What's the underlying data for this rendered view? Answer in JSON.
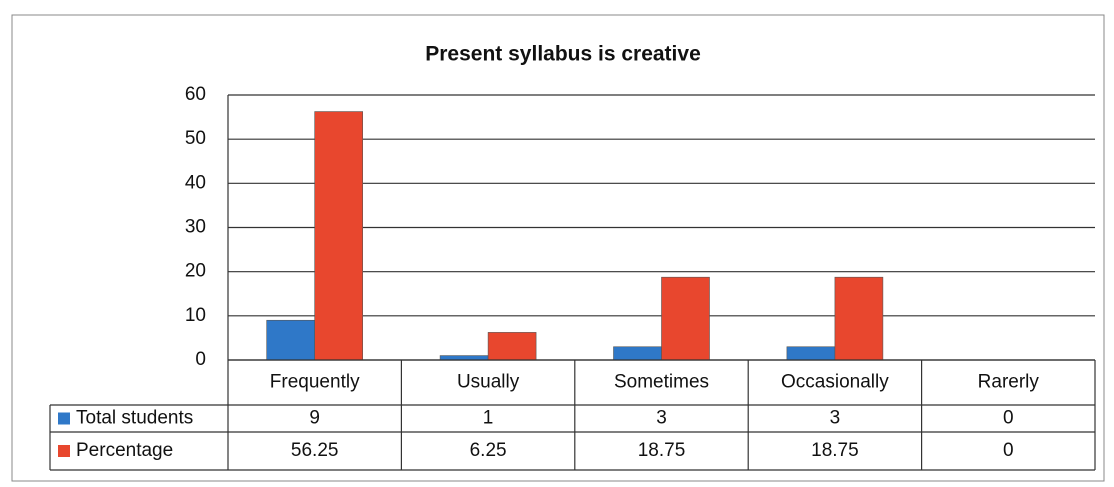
{
  "chart_data": {
    "type": "bar",
    "title": "Present syllabus is creative",
    "categories": [
      "Frequently",
      "Usually",
      "Sometimes",
      "Occasionally",
      "Rarerly"
    ],
    "series": [
      {
        "name": "Total students",
        "color": "#2f78c8",
        "values": [
          9,
          1,
          3,
          3,
          0
        ]
      },
      {
        "name": "Percentage",
        "color": "#e8472e",
        "values": [
          56.25,
          6.25,
          18.75,
          18.75,
          0
        ]
      }
    ],
    "ylim": [
      0,
      60
    ],
    "yticks": [
      0,
      10,
      20,
      30,
      40,
      50,
      60
    ],
    "grid": true,
    "data_table": true
  }
}
